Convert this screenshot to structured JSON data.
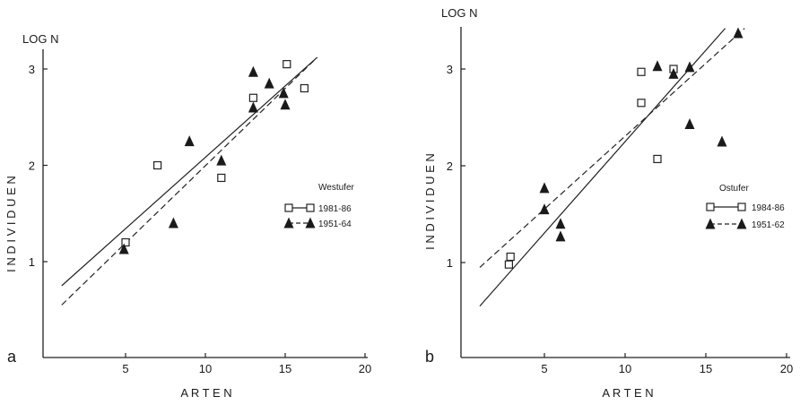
{
  "chart_data": [
    {
      "panel": "a",
      "type": "scatter",
      "xlabel": "A R T E N",
      "ylabel": "I N D I V I D U E N",
      "ylabel_top": "LOG N",
      "xlim": [
        1,
        20
      ],
      "ylim": [
        0.05,
        3.15
      ],
      "xticks": [
        5,
        10,
        15,
        20
      ],
      "yticks": [
        1,
        2,
        3
      ],
      "legend_title": "Westufer",
      "legend_position": "right",
      "series": [
        {
          "name": "1981-86",
          "marker": "open-square",
          "line_style": "solid",
          "points": [
            [
              5,
              1.2
            ],
            [
              7,
              2.0
            ],
            [
              11,
              1.87
            ],
            [
              13,
              2.7
            ],
            [
              15.1,
              3.05
            ],
            [
              16.2,
              2.8
            ]
          ],
          "fit_line": [
            [
              1,
              0.75
            ],
            [
              17,
              3.12
            ]
          ]
        },
        {
          "name": "1951-64",
          "marker": "filled-triangle",
          "line_style": "dashed",
          "points": [
            [
              4.9,
              1.13
            ],
            [
              8,
              1.4
            ],
            [
              9,
              2.25
            ],
            [
              11,
              2.05
            ],
            [
              13,
              2.6
            ],
            [
              13,
              2.97
            ],
            [
              14,
              2.85
            ],
            [
              14.9,
              2.75
            ],
            [
              15,
              2.63
            ]
          ],
          "fit_line": [
            [
              1,
              0.55
            ],
            [
              17,
              3.12
            ]
          ]
        }
      ]
    },
    {
      "panel": "b",
      "type": "scatter",
      "xlabel": "A R T E N",
      "ylabel": "I N D I V I D U E N",
      "ylabel_top": "LOG N",
      "xlim": [
        1,
        20
      ],
      "ylim": [
        0.1,
        3.45
      ],
      "xticks": [
        5,
        10,
        15,
        20
      ],
      "yticks": [
        1,
        2,
        3
      ],
      "legend_title": "Ostufer",
      "legend_position": "right",
      "series": [
        {
          "name": "1984-86",
          "marker": "open-square",
          "line_style": "solid",
          "points": [
            [
              2.8,
              0.98
            ],
            [
              2.9,
              1.06
            ],
            [
              11,
              2.97
            ],
            [
              11,
              2.65
            ],
            [
              12,
              2.07
            ],
            [
              13,
              3.0
            ]
          ],
          "fit_line": [
            [
              1,
              0.55
            ],
            [
              16.2,
              3.42
            ]
          ]
        },
        {
          "name": "1951-62",
          "marker": "filled-triangle",
          "line_style": "dashed",
          "points": [
            [
              5,
              1.77
            ],
            [
              5,
              1.55
            ],
            [
              6,
              1.4
            ],
            [
              6,
              1.27
            ],
            [
              12,
              3.03
            ],
            [
              13,
              2.95
            ],
            [
              14,
              3.02
            ],
            [
              14,
              2.43
            ],
            [
              16,
              2.25
            ],
            [
              17,
              3.37
            ]
          ],
          "fit_line": [
            [
              1,
              0.95
            ],
            [
              17.4,
              3.42
            ]
          ]
        }
      ]
    }
  ]
}
